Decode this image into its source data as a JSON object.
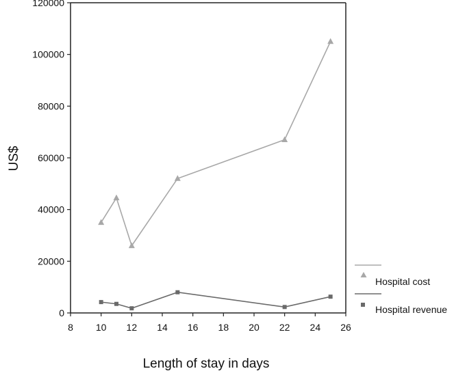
{
  "chart_data": {
    "type": "line",
    "title": "",
    "xlabel": "Length of stay in days",
    "ylabel": "US$",
    "xlim": [
      8,
      26
    ],
    "ylim": [
      0,
      120000
    ],
    "x_ticks": [
      8,
      10,
      12,
      14,
      16,
      18,
      20,
      22,
      24,
      26
    ],
    "y_ticks": [
      0,
      20000,
      40000,
      60000,
      80000,
      100000,
      120000
    ],
    "grid": false,
    "legend_position": "bottom-right, outside plot",
    "series": [
      {
        "name": "Hospital cost",
        "marker": "triangle",
        "color": "#a8a8a8",
        "points": [
          [
            10,
            35000
          ],
          [
            11,
            44500
          ],
          [
            12,
            26000
          ],
          [
            15,
            52000
          ],
          [
            22,
            67000
          ],
          [
            25,
            105000
          ]
        ]
      },
      {
        "name": "Hospital revenue",
        "marker": "square",
        "color": "#6a6a6a",
        "points": [
          [
            10,
            4200
          ],
          [
            11,
            3500
          ],
          [
            12,
            1800
          ],
          [
            15,
            8000
          ],
          [
            22,
            2300
          ],
          [
            25,
            6300
          ]
        ]
      }
    ]
  }
}
